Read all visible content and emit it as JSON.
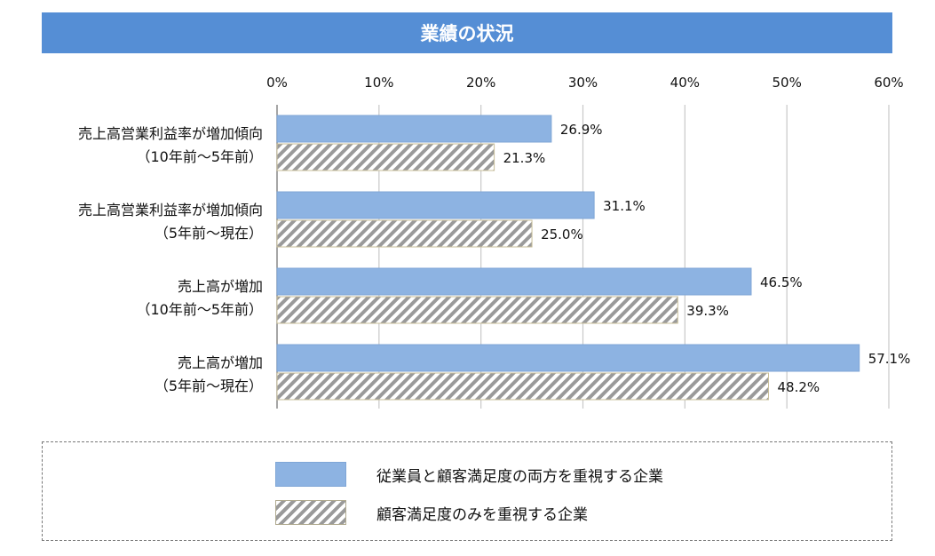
{
  "chart_data": {
    "type": "bar",
    "orientation": "horizontal",
    "title": "業績の状況",
    "categories": [
      [
        "売上高営業利益率が増加傾向",
        "（10年前～5年前）"
      ],
      [
        "売上高営業利益率が増加傾向",
        "（5年前～現在）"
      ],
      [
        "売上高が増加",
        "（10年前～5年前）"
      ],
      [
        "売上高が増加",
        "（5年前～現在）"
      ]
    ],
    "series": [
      {
        "name": "従業員と顧客満足度の両方を重視する企業",
        "values": [
          26.9,
          31.1,
          46.5,
          57.1
        ],
        "labels": [
          "26.9%",
          "31.1%",
          "46.5%",
          "57.1%"
        ],
        "color": "#8db3e2"
      },
      {
        "name": "顧客満足度のみを重視する企業",
        "values": [
          21.3,
          25.0,
          39.3,
          48.2
        ],
        "labels": [
          "21.3%",
          "25.0%",
          "39.3%",
          "48.2%"
        ],
        "pattern": "diagonal-hatch",
        "color": "#9a9a9a"
      }
    ],
    "xlim": [
      0,
      60
    ],
    "xticks": [
      "0%",
      "10%",
      "20%",
      "30%",
      "40%",
      "50%",
      "60%"
    ],
    "grid": "vertical",
    "legend_position": "bottom"
  },
  "colors": {
    "title_bar": "#558ed5"
  }
}
